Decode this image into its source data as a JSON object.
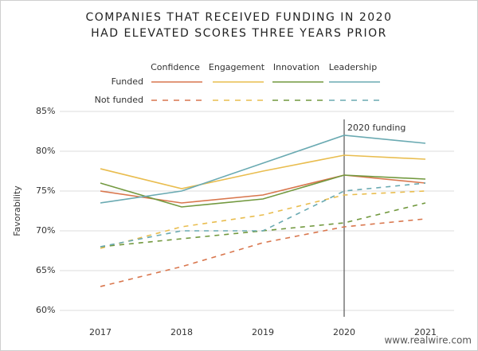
{
  "chart_data": {
    "type": "line",
    "title": [
      "COMPANIES THAT RECEIVED FUNDING IN 2020",
      "HAD ELEVATED SCORES THREE YEARS PRIOR"
    ],
    "y_label": "Favorability",
    "categories": [
      "2017",
      "2018",
      "2019",
      "2020",
      "2021"
    ],
    "line_styles": [
      "Funded",
      "Not funded"
    ],
    "series": [
      {
        "name": "Confidence",
        "color": "#d9774e",
        "values": [
          75,
          73.5,
          74.5,
          77,
          76
        ],
        "values_not_funded": [
          63,
          65.5,
          68.5,
          70.5,
          71.5
        ]
      },
      {
        "name": "Engagement",
        "color": "#e9bd4f",
        "values": [
          77.8,
          75.3,
          77.5,
          79.5,
          79
        ],
        "values_not_funded": [
          67.8,
          70.5,
          72,
          74.5,
          75
        ]
      },
      {
        "name": "Innovation",
        "color": "#72993f",
        "values": [
          76,
          73,
          74,
          77,
          76.5
        ],
        "values_not_funded": [
          68,
          69,
          70,
          71,
          73.5
        ]
      },
      {
        "name": "Leadership",
        "color": "#6aaab2",
        "values": [
          73.5,
          75,
          78.5,
          82,
          81
        ],
        "values_not_funded": [
          68,
          70,
          70,
          75,
          76
        ]
      }
    ],
    "ylim": [
      60,
      85
    ],
    "yticks": [
      {
        "value": 60,
        "label": "60%"
      },
      {
        "value": 65,
        "label": "65%"
      },
      {
        "value": 70,
        "label": "70%"
      },
      {
        "value": 75,
        "label": "75%"
      },
      {
        "value": 80,
        "label": "80%"
      },
      {
        "value": 85,
        "label": "85%"
      }
    ],
    "grid": true,
    "annotation": {
      "text": "2020 funding",
      "at": "2020"
    },
    "watermark": "www.realwire.com"
  }
}
